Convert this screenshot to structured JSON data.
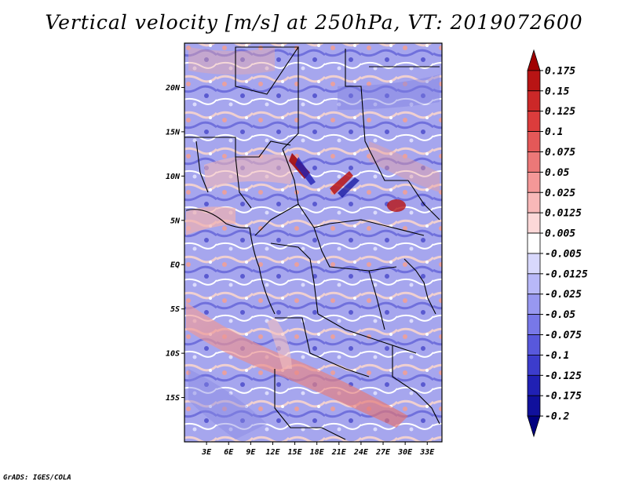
{
  "title": "Vertical velocity [m/s] at 250hPa, VT: 2019072600",
  "credit": "GrADS: IGES/COLA",
  "map": {
    "lon_range": [
      0,
      35
    ],
    "lat_range": [
      -20,
      25
    ],
    "lat_labels": [
      "20N",
      "15N",
      "10N",
      "5N",
      "EQ",
      "5S",
      "10S",
      "15S"
    ],
    "lat_values": [
      20,
      15,
      10,
      5,
      0,
      -5,
      -10,
      -15
    ],
    "lon_labels": [
      "3E",
      "6E",
      "9E",
      "12E",
      "15E",
      "18E",
      "21E",
      "24E",
      "27E",
      "30E",
      "33E"
    ],
    "lon_values": [
      3,
      6,
      9,
      12,
      15,
      18,
      21,
      24,
      27,
      30,
      33
    ]
  },
  "colorbar": {
    "labels": [
      "0.175",
      "0.15",
      "0.125",
      "0.1",
      "0.075",
      "0.05",
      "0.025",
      "0.0125",
      "0.005",
      "-0.005",
      "-0.0125",
      "-0.025",
      "-0.05",
      "-0.075",
      "-0.1",
      "-0.125",
      "-0.175",
      "-0.2"
    ],
    "colors": [
      "#a00000",
      "#b81414",
      "#cc2828",
      "#dc3c3c",
      "#e45858",
      "#ec7878",
      "#f49898",
      "#f8b8b8",
      "#fcd8d8",
      "#ffffff",
      "#d8d8fc",
      "#b8b8f8",
      "#9898f0",
      "#7878e8",
      "#5858dc",
      "#3c3ccc",
      "#2020b4",
      "#10109c",
      "#000080"
    ]
  }
}
